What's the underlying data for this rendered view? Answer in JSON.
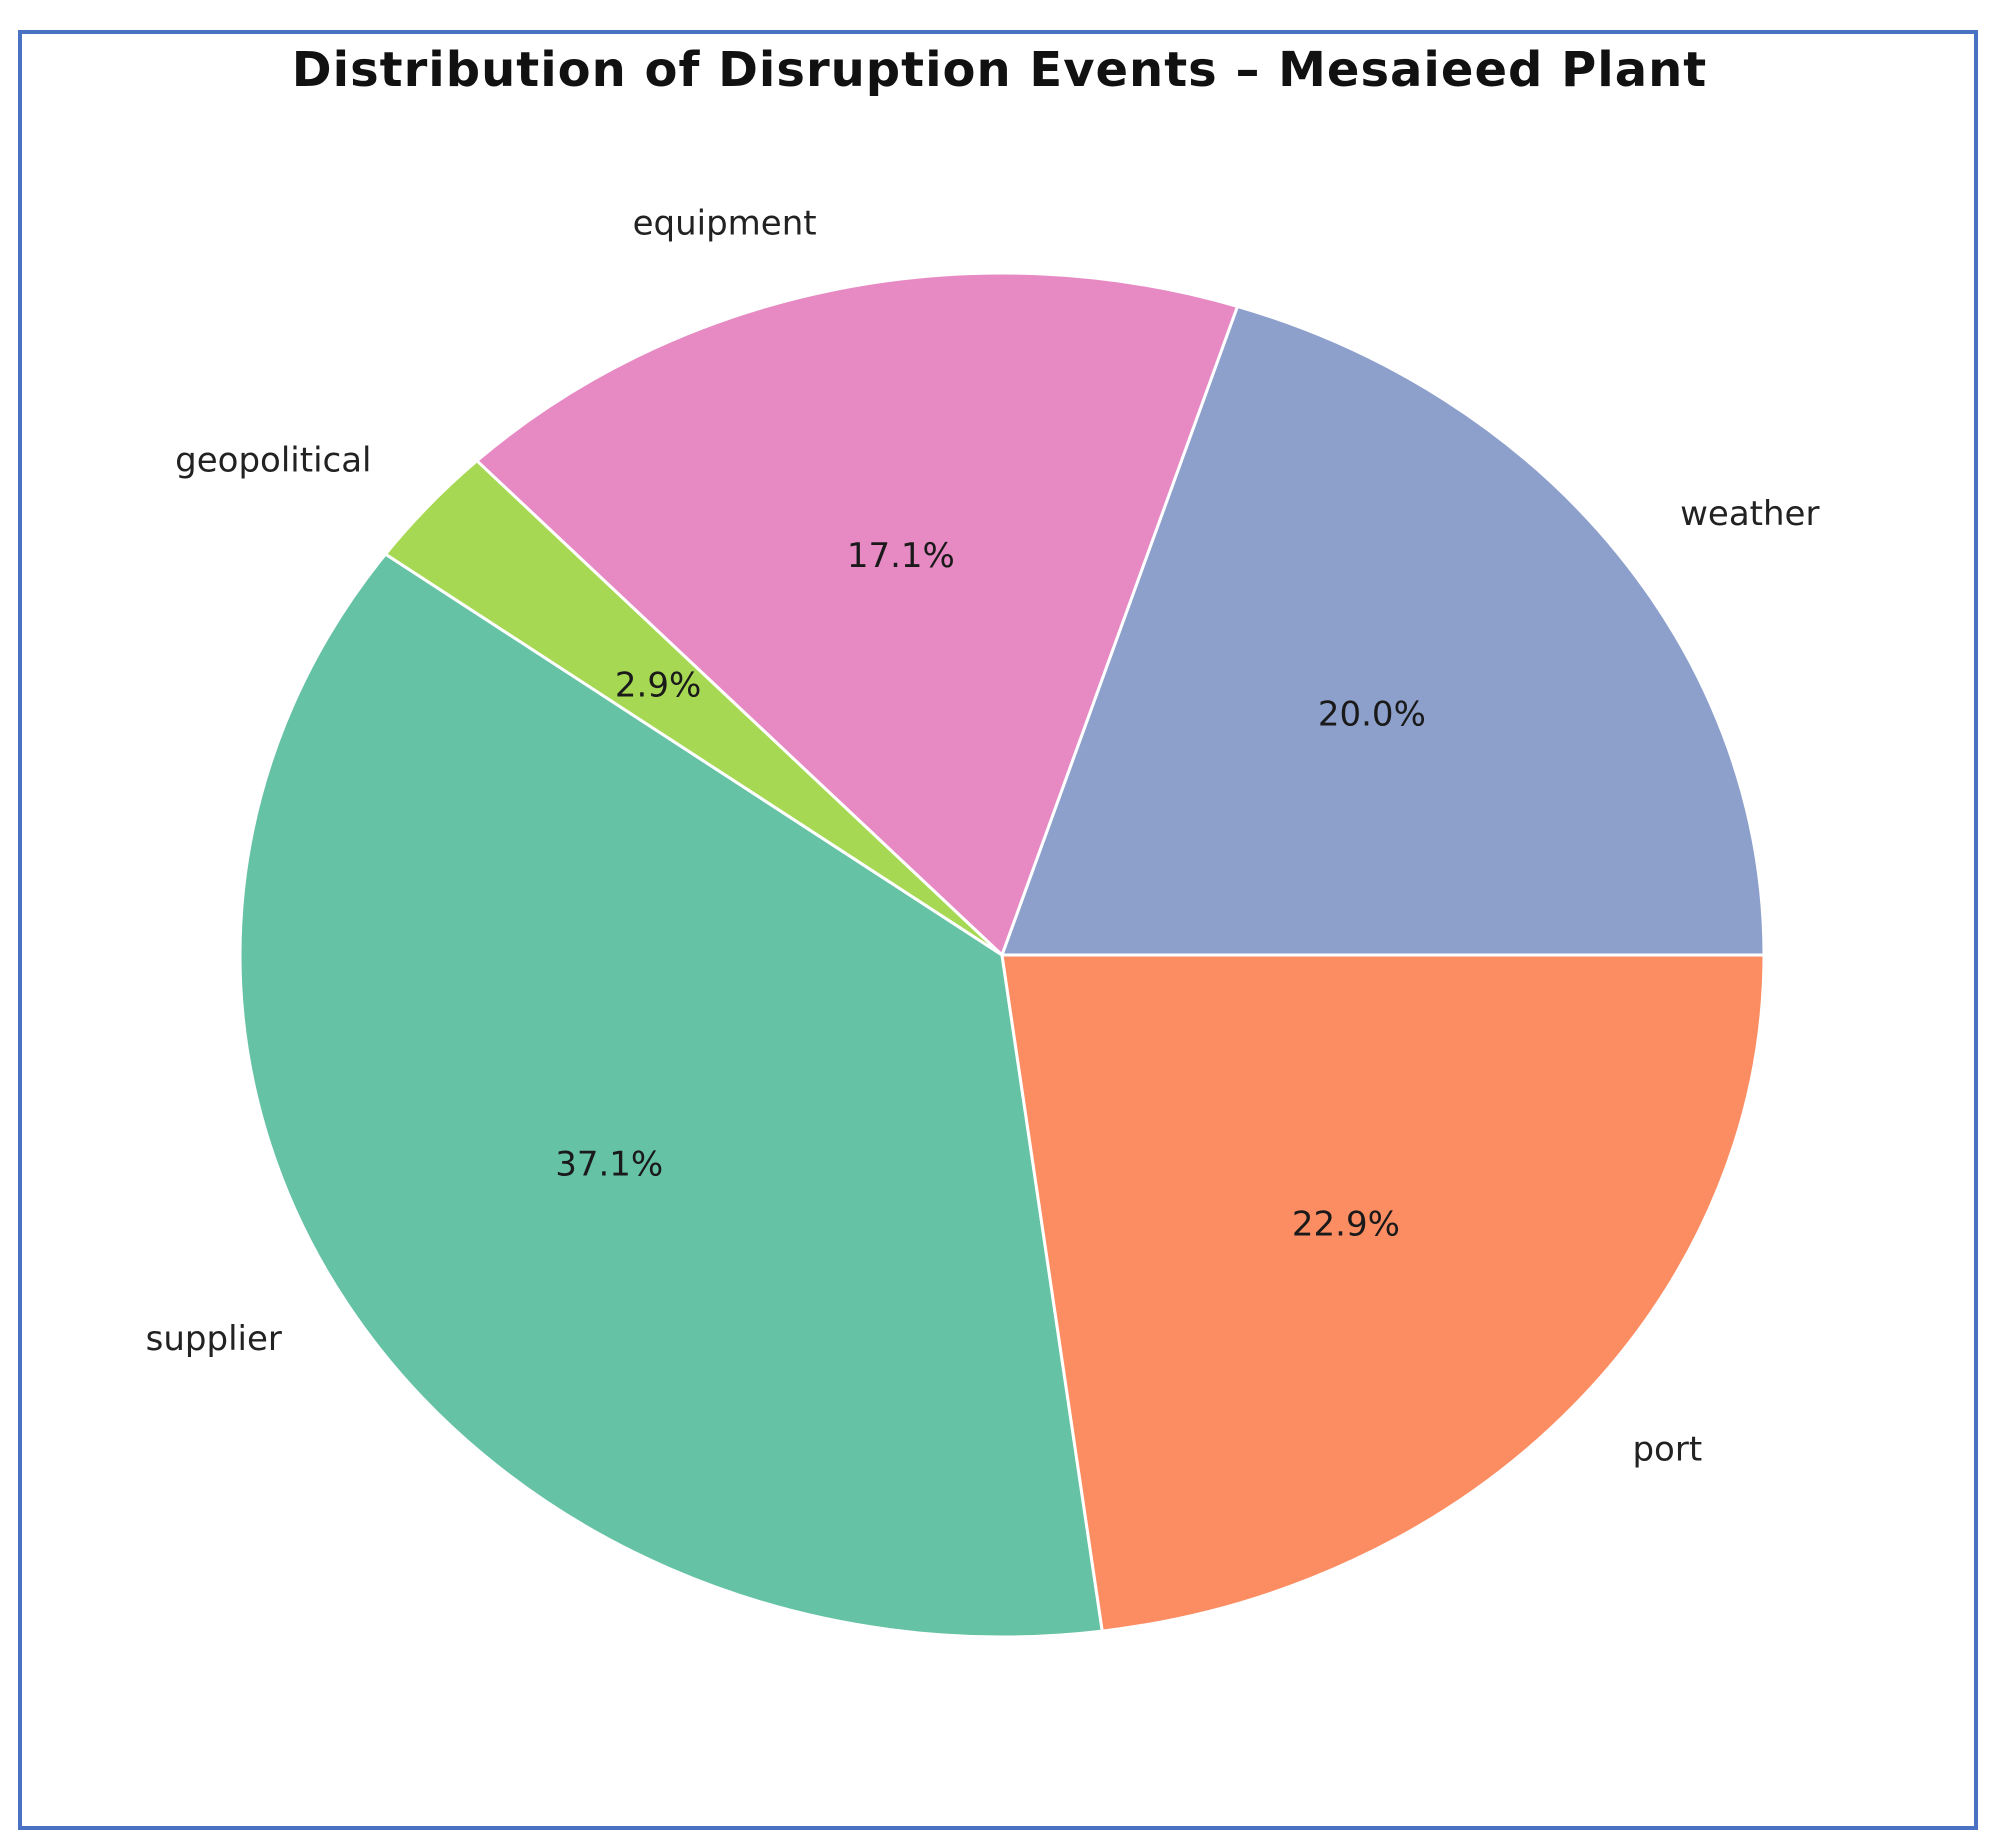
{
  "chart_data": {
    "type": "pie",
    "title": "Distribution of Disruption Events – Mesaieed Plant",
    "start_angle_deg": 144,
    "direction": "counterclockwise",
    "slices": [
      {
        "label": "supplier",
        "percent": 37.1,
        "pct_label": "37.1%",
        "color": "#66c2a5"
      },
      {
        "label": "port",
        "percent": 22.9,
        "pct_label": "22.9%",
        "color": "#fc8d62"
      },
      {
        "label": "weather",
        "percent": 20.0,
        "pct_label": "20.0%",
        "color": "#8da0cb"
      },
      {
        "label": "equipment",
        "percent": 17.1,
        "pct_label": "17.1%",
        "color": "#e78ac3"
      },
      {
        "label": "geopolitical",
        "percent": 2.9,
        "pct_label": "2.9%",
        "color": "#a6d854"
      }
    ]
  },
  "colors": {
    "frame_border": "#4a72c2",
    "slice_edge": "#ffffff"
  }
}
